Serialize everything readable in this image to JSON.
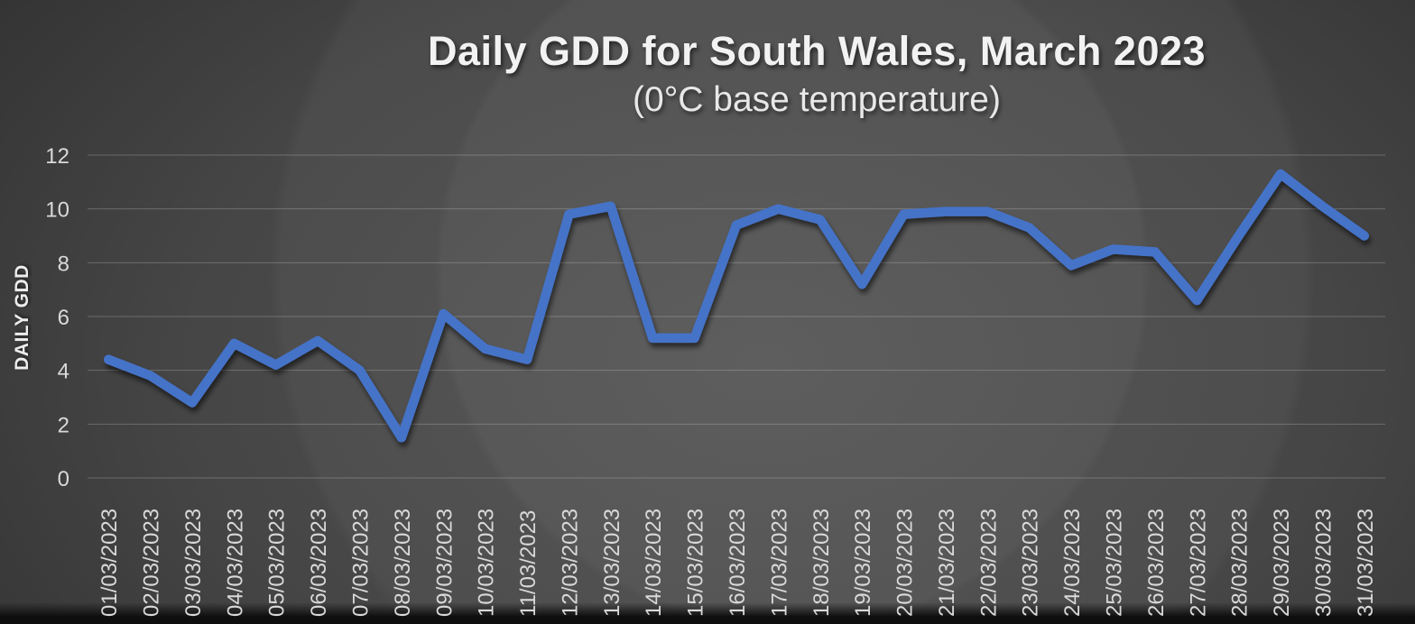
{
  "colors": {
    "line": "#4573c8",
    "gridline": "rgba(255,255,255,0.22)",
    "tick_label": "#d9d9d9",
    "title_text": "#f2f2f2",
    "background_center": "#525252",
    "background_edge": "#242424"
  },
  "chart_data": {
    "type": "line",
    "title": "Daily GDD for South Wales, March 2023",
    "subtitle": "(0°C base temperature)",
    "xlabel": "",
    "ylabel": "DAILY GDD",
    "ylim": [
      0,
      12
    ],
    "yticks": [
      0,
      2,
      4,
      6,
      8,
      10,
      12
    ],
    "grid": true,
    "legend": false,
    "categories": [
      "01/03/2023",
      "02/03/2023",
      "03/03/2023",
      "04/03/2023",
      "05/03/2023",
      "06/03/2023",
      "07/03/2023",
      "08/03/2023",
      "09/03/2023",
      "10/03/2023",
      "11/03/2023",
      "12/03/2023",
      "13/03/2023",
      "14/03/2023",
      "15/03/2023",
      "16/03/2023",
      "17/03/2023",
      "18/03/2023",
      "19/03/2023",
      "20/03/2023",
      "21/03/2023",
      "22/03/2023",
      "23/03/2023",
      "24/03/2023",
      "25/03/2023",
      "26/03/2023",
      "27/03/2023",
      "28/03/2023",
      "29/03/2023",
      "30/03/2023",
      "31/03/2023"
    ],
    "series": [
      {
        "name": "Daily GDD",
        "values": [
          4.4,
          3.8,
          2.8,
          5.0,
          4.2,
          5.1,
          4.0,
          1.5,
          6.1,
          4.8,
          4.4,
          9.8,
          10.1,
          5.2,
          5.2,
          9.4,
          10.0,
          9.6,
          7.2,
          9.8,
          9.9,
          9.9,
          9.3,
          7.9,
          8.5,
          8.4,
          6.6,
          9.0,
          11.3,
          10.1,
          9.0
        ]
      }
    ]
  }
}
